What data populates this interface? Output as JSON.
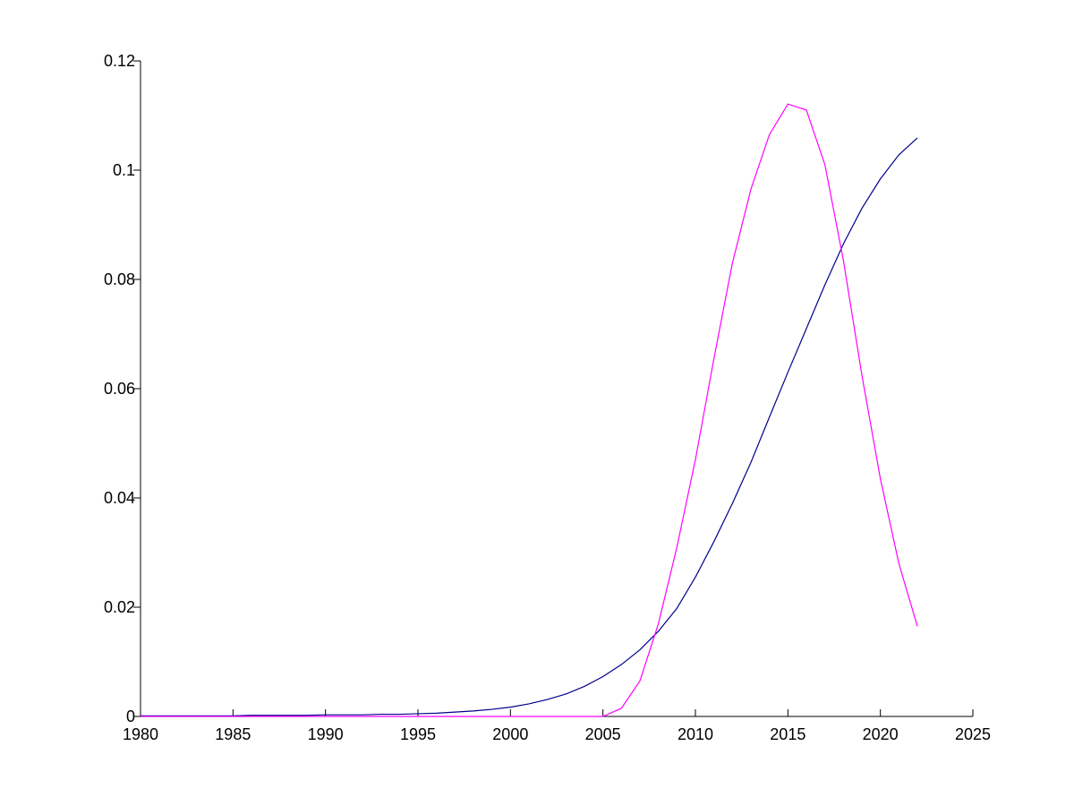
{
  "chart_data": {
    "type": "line",
    "x": [
      1980,
      1981,
      1982,
      1983,
      1984,
      1985,
      1986,
      1987,
      1988,
      1989,
      1990,
      1991,
      1992,
      1993,
      1994,
      1995,
      1996,
      1997,
      1998,
      1999,
      2000,
      2001,
      2002,
      2003,
      2004,
      2005,
      2006,
      2007,
      2008,
      2009,
      2010,
      2011,
      2012,
      2013,
      2014,
      2015,
      2016,
      2017,
      2018,
      2019,
      2020,
      2021,
      2022
    ],
    "series": [
      {
        "color": "#00008b",
        "values": [
          0.0001,
          0.0001,
          0.0001,
          0.0001,
          0.0001,
          0.0001,
          0.0002,
          0.0002,
          0.0002,
          0.0002,
          0.0003,
          0.0003,
          0.0003,
          0.0004,
          0.0004,
          0.0005,
          0.0006,
          0.0008,
          0.001,
          0.0013,
          0.0017,
          0.0023,
          0.0031,
          0.0041,
          0.0055,
          0.0073,
          0.0095,
          0.0122,
          0.0156,
          0.0198,
          0.0255,
          0.032,
          0.039,
          0.0465,
          0.0548,
          0.063,
          0.071,
          0.079,
          0.0865,
          0.093,
          0.0984,
          0.1028,
          0.1059
        ]
      },
      {
        "color": "#ff00ff",
        "values": [
          0,
          0,
          0,
          0,
          0,
          0,
          0,
          0,
          0,
          0,
          0,
          0,
          0,
          0,
          0,
          0,
          0,
          0,
          0,
          0,
          0,
          0,
          0,
          0,
          0,
          0,
          0.0015,
          0.0065,
          0.017,
          0.031,
          0.047,
          0.0655,
          0.083,
          0.0965,
          0.1065,
          0.1121,
          0.111,
          0.101,
          0.0835,
          0.0625,
          0.0435,
          0.028,
          0.0165
        ]
      }
    ],
    "xlim": [
      1980,
      2025
    ],
    "xticks": [
      1980,
      1985,
      1990,
      1995,
      2000,
      2005,
      2010,
      2015,
      2020,
      2025
    ],
    "ylim": [
      0,
      0.12
    ],
    "yticks": [
      0,
      0.02,
      0.04,
      0.06,
      0.08,
      0.1,
      0.12
    ]
  }
}
